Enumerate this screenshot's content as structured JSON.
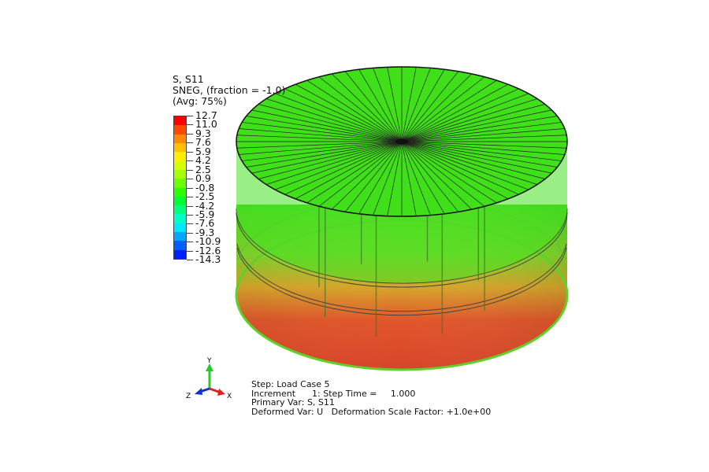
{
  "legend": {
    "title_lines": [
      "S, S11",
      "SNEG, (fraction = -1.0)",
      "(Avg: 75%)"
    ],
    "values": [
      "12.7",
      "11.0",
      "9.3",
      "7.6",
      "5.9",
      "4.2",
      "2.5",
      "0.9",
      "-0.8",
      "-2.5",
      "-4.2",
      "-5.9",
      "-7.6",
      "-9.3",
      "-10.9",
      "-12.6",
      "-14.3"
    ],
    "colors": [
      "#ff0000",
      "#ff4a00",
      "#ff8a00",
      "#ffc000",
      "#ffee00",
      "#d8ff00",
      "#a8ff00",
      "#6cff00",
      "#2eff00",
      "#00ff30",
      "#00ff7a",
      "#00ffc4",
      "#00e8ff",
      "#00a8ff",
      "#0060ff",
      "#0020ff"
    ]
  },
  "triad": {
    "y": "Y",
    "x": "X",
    "z": "Z"
  },
  "info": {
    "step": "Step: Load Case 5",
    "increment": "Increment      1: Step Time =     1.000",
    "primary": "Primary Var: S, S11",
    "deformed": "Deformed Var: U   Deformation Scale Factor: +1.0e+00"
  }
}
